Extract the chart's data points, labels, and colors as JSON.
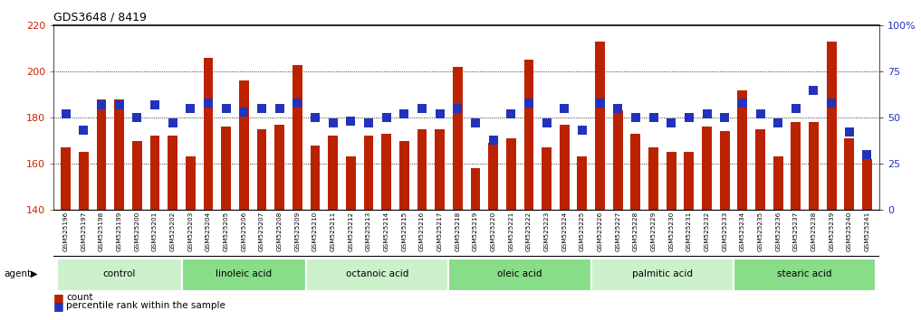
{
  "title": "GDS3648 / 8419",
  "samples": [
    "GSM525196",
    "GSM525197",
    "GSM525198",
    "GSM525199",
    "GSM525200",
    "GSM525201",
    "GSM525202",
    "GSM525203",
    "GSM525204",
    "GSM525205",
    "GSM525206",
    "GSM525207",
    "GSM525208",
    "GSM525209",
    "GSM525210",
    "GSM525211",
    "GSM525212",
    "GSM525213",
    "GSM525214",
    "GSM525215",
    "GSM525216",
    "GSM525217",
    "GSM525218",
    "GSM525219",
    "GSM525220",
    "GSM525221",
    "GSM525222",
    "GSM525223",
    "GSM525224",
    "GSM525225",
    "GSM525226",
    "GSM525227",
    "GSM525228",
    "GSM525229",
    "GSM525230",
    "GSM525231",
    "GSM525232",
    "GSM525233",
    "GSM525234",
    "GSM525235",
    "GSM525236",
    "GSM525237",
    "GSM525238",
    "GSM525239",
    "GSM525240",
    "GSM525241"
  ],
  "counts": [
    167,
    165,
    188,
    188,
    170,
    172,
    172,
    163,
    206,
    176,
    196,
    175,
    177,
    203,
    168,
    172,
    163,
    172,
    173,
    170,
    175,
    175,
    202,
    158,
    169,
    171,
    205,
    167,
    177,
    163,
    213,
    183,
    173,
    167,
    165,
    165,
    176,
    174,
    192,
    175,
    163,
    178,
    178,
    213,
    171,
    162
  ],
  "percentiles": [
    52,
    43,
    57,
    57,
    50,
    57,
    47,
    55,
    58,
    55,
    53,
    55,
    55,
    58,
    50,
    47,
    48,
    47,
    50,
    52,
    55,
    52,
    55,
    47,
    38,
    52,
    58,
    47,
    55,
    43,
    58,
    55,
    50,
    50,
    47,
    50,
    52,
    50,
    58,
    52,
    47,
    55,
    65,
    58,
    42,
    30
  ],
  "groups": [
    {
      "label": "control",
      "start": 0,
      "end": 6,
      "color": "#ccf0cc"
    },
    {
      "label": "linoleic acid",
      "start": 7,
      "end": 13,
      "color": "#88dd88"
    },
    {
      "label": "octanoic acid",
      "start": 14,
      "end": 21,
      "color": "#ccf0cc"
    },
    {
      "label": "oleic acid",
      "start": 22,
      "end": 29,
      "color": "#88dd88"
    },
    {
      "label": "palmitic acid",
      "start": 30,
      "end": 37,
      "color": "#ccf0cc"
    },
    {
      "label": "stearic acid",
      "start": 38,
      "end": 45,
      "color": "#88dd88"
    }
  ],
  "bar_color": "#bb2200",
  "pct_color": "#2233bb",
  "ylim": [
    140,
    220
  ],
  "yticks": [
    140,
    160,
    180,
    200,
    220
  ],
  "pct_ylim": [
    0,
    100
  ],
  "pct_yticks": [
    0,
    25,
    50,
    75,
    100
  ],
  "pct_yticklabels": [
    "0",
    "25",
    "50",
    "75",
    "100%"
  ],
  "grid_values": [
    160,
    180,
    200
  ],
  "bg_color": "#ffffff",
  "ticklabel_bg_color": "#d4d4d4",
  "bar_width": 0.55,
  "pct_marker_size": 48
}
